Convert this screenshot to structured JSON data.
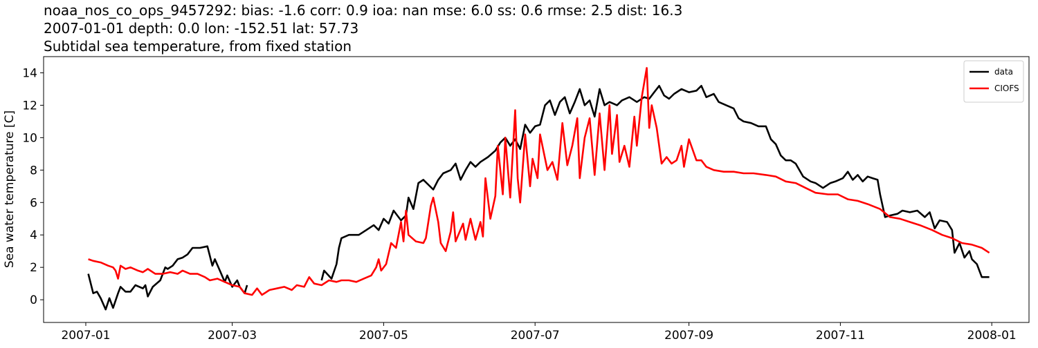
{
  "chart_data": {
    "type": "line",
    "title": [
      "noaa_nos_co_ops_9457292: bias: -1.6  corr: 0.9  ioa: nan  mse: 6.0  ss: 0.6  rmse: 2.5  dist: 16.3",
      "2007-01-01 depth: 0.0 lon: -152.51 lat: 57.73",
      "Subtidal sea temperature, from fixed station"
    ],
    "y_label": "Sea water temperature [C]",
    "xlim": [
      -17,
      380
    ],
    "ylim": [
      -1.4,
      15
    ],
    "xticks": [
      {
        "value": 0,
        "label": "2007-01"
      },
      {
        "value": 59,
        "label": "2007-03"
      },
      {
        "value": 120,
        "label": "2007-05"
      },
      {
        "value": 181,
        "label": "2007-07"
      },
      {
        "value": 243,
        "label": "2007-09"
      },
      {
        "value": 304,
        "label": "2007-11"
      },
      {
        "value": 365,
        "label": "2008-01"
      }
    ],
    "yticks": [
      0,
      2,
      4,
      6,
      8,
      10,
      12,
      14
    ],
    "grid": false,
    "legend": "upper right",
    "series": [
      {
        "name": "data",
        "color": "#000000",
        "x": [
          1,
          3,
          4.5,
          6,
          8,
          9.5,
          11,
          13,
          14,
          16,
          18,
          20,
          23,
          24,
          25,
          27,
          30,
          32,
          33,
          35,
          37,
          39,
          41,
          43,
          46,
          49,
          51,
          52,
          54,
          56,
          57,
          59,
          61,
          62,
          64,
          65,
          80,
          95,
          96,
          99,
          101,
          102,
          103,
          106,
          110,
          113,
          116,
          118,
          120,
          122,
          124,
          127,
          129,
          130,
          132,
          134,
          136,
          138,
          140,
          142,
          144,
          147,
          149,
          151,
          153,
          155,
          157,
          159,
          162,
          165,
          167,
          169,
          171,
          173,
          175,
          177,
          179,
          181,
          183,
          185,
          187,
          189,
          191,
          193,
          195,
          197,
          199,
          201,
          203,
          205,
          207,
          209,
          211,
          214,
          216,
          219,
          222,
          225,
          227,
          229,
          231,
          233,
          235,
          237,
          240,
          243,
          246,
          248,
          250,
          253,
          255,
          258,
          261,
          263,
          265,
          268,
          271,
          274,
          276,
          278,
          280,
          282,
          284,
          286,
          289,
          292,
          294,
          297,
          300,
          302,
          305,
          307,
          309,
          311,
          313,
          315,
          317,
          319,
          320,
          322,
          324,
          327,
          329,
          332,
          335,
          338,
          340,
          342,
          344,
          347,
          349,
          350,
          352,
          354,
          356,
          357,
          359,
          361,
          364
        ],
        "values": [
          1.6,
          0.4,
          0.5,
          0.1,
          -0.6,
          0.1,
          -0.5,
          0.4,
          0.8,
          0.5,
          0.5,
          0.9,
          0.7,
          0.9,
          0.2,
          0.8,
          1.2,
          2.0,
          1.9,
          2.1,
          2.5,
          2.6,
          2.8,
          3.2,
          3.2,
          3.3,
          2.1,
          2.5,
          1.8,
          1.1,
          1.5,
          0.8,
          1.2,
          0.8,
          0.4,
          0.9,
          null,
          1.2,
          1.8,
          1.3,
          2.2,
          3.2,
          3.8,
          4.0,
          4.0,
          4.3,
          4.6,
          4.3,
          5.0,
          4.7,
          5.5,
          4.9,
          5.2,
          6.3,
          5.6,
          7.2,
          7.4,
          7.1,
          6.8,
          7.4,
          7.8,
          8.0,
          8.4,
          7.4,
          8.0,
          8.5,
          8.2,
          8.5,
          8.8,
          9.2,
          9.7,
          10.0,
          9.5,
          9.9,
          9.3,
          10.8,
          10.3,
          10.7,
          10.8,
          12.0,
          12.3,
          11.4,
          12.2,
          12.5,
          11.5,
          12.2,
          13.0,
          12.0,
          12.3,
          11.3,
          13.0,
          12.0,
          12.2,
          12.0,
          12.3,
          12.5,
          12.2,
          12.5,
          12.4,
          12.8,
          13.2,
          12.6,
          12.4,
          12.7,
          13.0,
          12.8,
          12.9,
          13.2,
          12.5,
          12.7,
          12.2,
          12.0,
          11.8,
          11.2,
          11.0,
          10.9,
          10.7,
          10.7,
          9.9,
          9.6,
          8.9,
          8.6,
          8.6,
          8.4,
          7.6,
          7.3,
          7.2,
          6.9,
          7.2,
          7.3,
          7.5,
          7.9,
          7.4,
          7.7,
          7.3,
          7.6,
          7.5,
          7.4,
          6.5,
          5.1,
          5.2,
          5.3,
          5.5,
          5.4,
          5.5,
          5.1,
          5.4,
          4.4,
          4.9,
          4.8,
          4.3,
          2.9,
          3.5,
          2.6,
          3.0,
          2.5,
          2.2,
          1.4,
          1.4
        ]
      },
      {
        "name": "CIOFS",
        "color": "#ff0000",
        "x": [
          1,
          3,
          6,
          9,
          11,
          12,
          13,
          14,
          16,
          18,
          21,
          23,
          25,
          28,
          31,
          34,
          37,
          39,
          42,
          45,
          48,
          50,
          53,
          56,
          59,
          62,
          64,
          67,
          69,
          71,
          74,
          77,
          80,
          83,
          85,
          88,
          90,
          92,
          95,
          98,
          101,
          103,
          106,
          109,
          112,
          115,
          117,
          118,
          119,
          121,
          123,
          125,
          127,
          128,
          129,
          130,
          133,
          136,
          137,
          139,
          140,
          142,
          143,
          145,
          147,
          148,
          149,
          152,
          153,
          155,
          157,
          159,
          160,
          161,
          163,
          165,
          166,
          168,
          169,
          171,
          173,
          174,
          175,
          177,
          179,
          180,
          182,
          183,
          186,
          188,
          190,
          192,
          194,
          196,
          198,
          199,
          201,
          203,
          205,
          207,
          209,
          211,
          212,
          214,
          215,
          217,
          219,
          221,
          222,
          224,
          226,
          227,
          228,
          230,
          232,
          234,
          236,
          238,
          240,
          241,
          243,
          246,
          248,
          250,
          253,
          257,
          261,
          265,
          269,
          274,
          278,
          282,
          286,
          290,
          294,
          299,
          303,
          307,
          311,
          315,
          320,
          324,
          328,
          332,
          336,
          341,
          345,
          349,
          353,
          357,
          361,
          364
        ],
        "values": [
          2.5,
          2.4,
          2.3,
          2.1,
          2.0,
          1.8,
          1.3,
          2.1,
          1.9,
          2.0,
          1.8,
          1.7,
          1.9,
          1.6,
          1.6,
          1.7,
          1.6,
          1.8,
          1.6,
          1.6,
          1.4,
          1.2,
          1.3,
          1.1,
          0.9,
          0.8,
          0.4,
          0.3,
          0.7,
          0.3,
          0.6,
          0.7,
          0.8,
          0.6,
          0.9,
          0.8,
          1.4,
          1.0,
          0.9,
          1.2,
          1.1,
          1.2,
          1.2,
          1.1,
          1.3,
          1.5,
          2.0,
          2.5,
          1.8,
          2.2,
          3.5,
          3.2,
          4.8,
          3.6,
          5.5,
          4.0,
          3.6,
          3.5,
          3.8,
          5.8,
          6.3,
          4.8,
          3.5,
          3.0,
          4.2,
          5.4,
          3.6,
          4.7,
          3.7,
          5.0,
          3.7,
          4.8,
          3.9,
          7.5,
          5.0,
          6.4,
          9.5,
          6.5,
          10.0,
          6.3,
          11.7,
          7.5,
          6.0,
          10.2,
          7.0,
          8.7,
          7.5,
          10.2,
          8.0,
          8.5,
          7.4,
          10.9,
          8.3,
          9.5,
          11.2,
          7.5,
          10.0,
          11.2,
          7.7,
          11.5,
          8.0,
          12.0,
          9.0,
          11.4,
          8.5,
          9.5,
          8.2,
          11.3,
          9.5,
          12.5,
          14.3,
          10.6,
          12.0,
          10.6,
          8.4,
          8.8,
          8.4,
          8.6,
          9.5,
          8.2,
          9.9,
          8.6,
          8.6,
          8.2,
          8.0,
          7.9,
          7.9,
          7.8,
          7.8,
          7.7,
          7.6,
          7.3,
          7.2,
          6.9,
          6.6,
          6.5,
          6.5,
          6.2,
          6.1,
          5.9,
          5.6,
          5.1,
          5.0,
          4.8,
          4.6,
          4.3,
          4.0,
          3.8,
          3.5,
          3.4,
          3.2,
          2.9
        ]
      }
    ]
  }
}
